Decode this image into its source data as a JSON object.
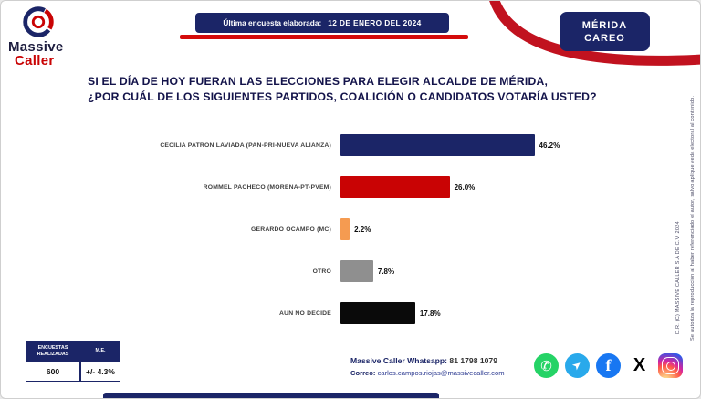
{
  "header": {
    "brand_line1": "Massive",
    "brand_line2": "Caller",
    "banner_label": "Última encuesta elaborada:",
    "banner_date": "12 DE ENERO DEL 2024",
    "badge_line1": "MÉRIDA",
    "badge_line2": "CAREO"
  },
  "question": {
    "line1": "SI EL DÍA DE HOY FUERAN LAS ELECCIONES PARA ELEGIR ALCALDE DE MÉRIDA,",
    "line2": "¿POR CUÁL DE LOS SIGUIENTES PARTIDOS, COALICIÓN O CANDIDATOS VOTARÍA USTED?"
  },
  "chart_data": {
    "type": "bar",
    "orientation": "horizontal",
    "title": "SI EL DÍA DE HOY FUERAN LAS ELECCIONES PARA ELEGIR ALCALDE DE MÉRIDA, ¿POR CUÁL DE LOS SIGUIENTES PARTIDOS, COALICIÓN O CANDIDATOS VOTARÍA USTED?",
    "categories": [
      "CECILIA PATRÓN LAVIADA (PAN-PRI-NUEVA ALIANZA)",
      "ROMMEL PACHECO (MORENA-PT-PVEM)",
      "GERARDO OCAMPO (MC)",
      "OTRO",
      "AÚN NO DECIDE"
    ],
    "values": [
      46.2,
      26.0,
      2.2,
      7.8,
      17.8
    ],
    "labels": [
      "46.2%",
      "26.0%",
      "2.2%",
      "7.8%",
      "17.8%"
    ],
    "colors": [
      "#1b2567",
      "#c90304",
      "#f59b51",
      "#8f8f8f",
      "#0a0a0a"
    ],
    "xlim": [
      0,
      50
    ],
    "unit": "percent",
    "legend": "none",
    "grid": false
  },
  "stats": {
    "header1": "ENCUESTAS REALIZADAS",
    "header2": "M.E.",
    "value1": "600",
    "value2": "+/- 4.3%"
  },
  "contact": {
    "whatsapp_label": "Massive Caller Whatsapp:",
    "whatsapp_number": "81 1798 1079",
    "email_label": "Correo:",
    "email": "carlos.campos.riojas@massivecaller.com"
  },
  "icons": {
    "whatsapp_glyph": "✆",
    "telegram_glyph": "➤",
    "facebook_glyph": "f",
    "x_glyph": "X"
  },
  "side_notes": {
    "reproduction": "Se autoriza la reproducción al haber referenciado el autor, salvo aplique veda electoral al contenido.",
    "copyright": "D.R. (C) MASSIVE CALLER S.A DE C.V. 2024"
  },
  "colors": {
    "navy": "#1b2567",
    "red": "#c90304",
    "underline_red": "#d40b0b"
  }
}
